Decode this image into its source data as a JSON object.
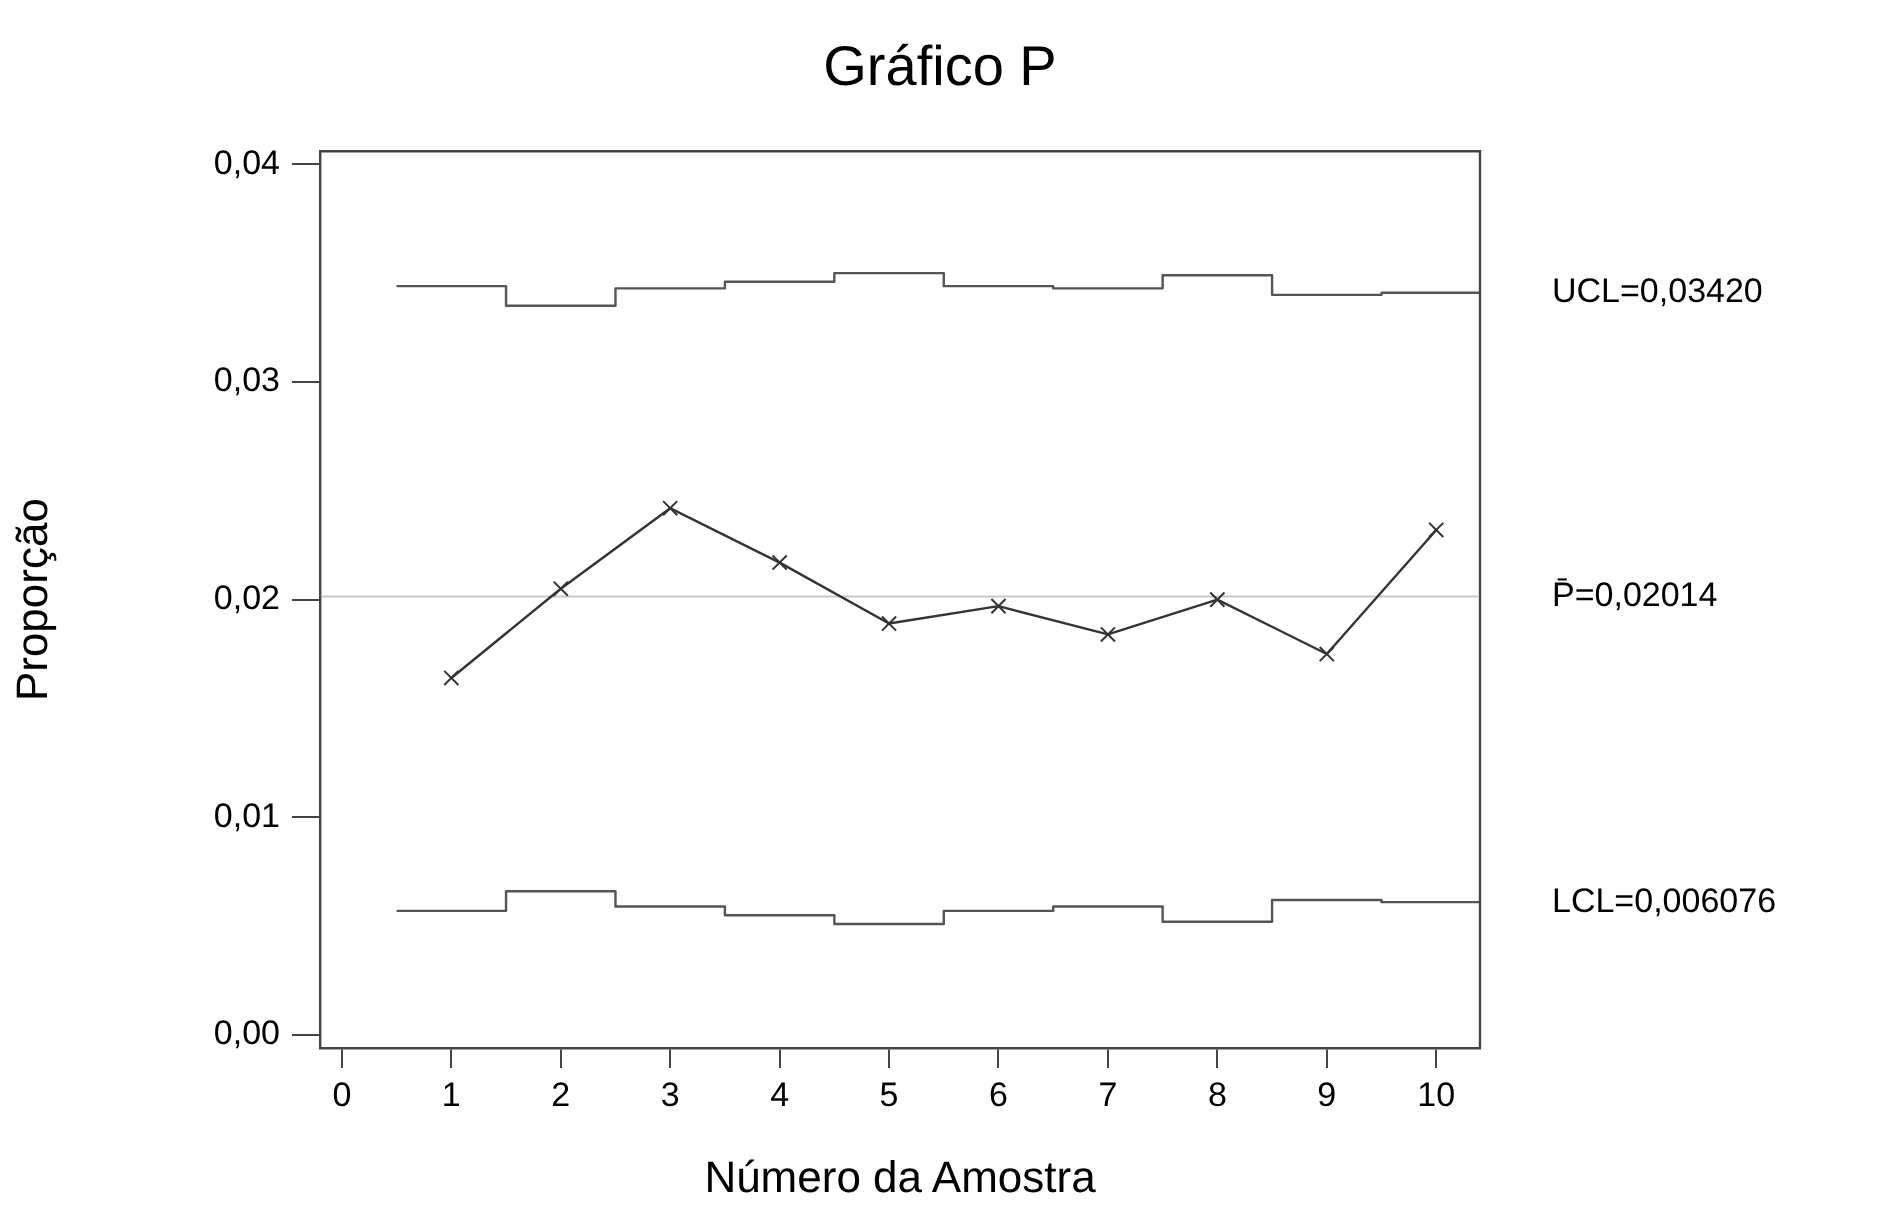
{
  "chart_data": {
    "type": "line",
    "title": "Gráfico P",
    "xlabel": "Número da Amostra",
    "ylabel": "Proporção",
    "x": [
      1,
      2,
      3,
      4,
      5,
      6,
      7,
      8,
      9,
      10
    ],
    "series": [
      {
        "type": "line",
        "color": "#333333",
        "marker": "cross",
        "values": [
          0.0164,
          0.0205,
          0.0242,
          0.0217,
          0.0189,
          0.0197,
          0.0184,
          0.02,
          0.0175,
          0.0232
        ]
      },
      {
        "type": "step",
        "name": "UCL=0,03420",
        "color": "#555555",
        "x": [
          0.5,
          1.5,
          2.5,
          3.5,
          4.5,
          5.5,
          6.5,
          7.5,
          8.5,
          9.5
        ],
        "marker": "none",
        "values": [
          0.0344,
          0.0335,
          0.0343,
          0.0346,
          0.035,
          0.0344,
          0.0343,
          0.0349,
          0.034,
          0.0341
        ]
      },
      {
        "type": "step",
        "name": "LCL=0,006076",
        "color": "#555555",
        "x": [
          0.5,
          1.5,
          2.5,
          3.5,
          4.5,
          5.5,
          6.5,
          7.5,
          8.5,
          9.5
        ],
        "marker": "none",
        "values": [
          0.0057,
          0.0066,
          0.0059,
          0.0055,
          0.0051,
          0.0057,
          0.0059,
          0.0052,
          0.0062,
          0.0061
        ]
      }
    ],
    "ref_lines": [
      {
        "axis": "y",
        "value": 0.02014,
        "label": "P̄=0,02014",
        "color": "#c8c8c8"
      }
    ],
    "xlim": [
      -0.2,
      10.4
    ],
    "xticks": [
      0,
      1,
      2,
      3,
      4,
      5,
      6,
      7,
      8,
      9,
      10
    ],
    "ylim": [
      -0.0006,
      0.0406
    ],
    "yticks": [
      {
        "value": 0,
        "label": "0,00"
      },
      {
        "value": 0.01,
        "label": "0,01"
      },
      {
        "value": 0.02,
        "label": "0,02"
      },
      {
        "value": 0.03,
        "label": "0,03"
      },
      {
        "value": 0.04,
        "label": "0,04"
      }
    ],
    "grid": false,
    "legend": false,
    "line_style": "solid"
  }
}
